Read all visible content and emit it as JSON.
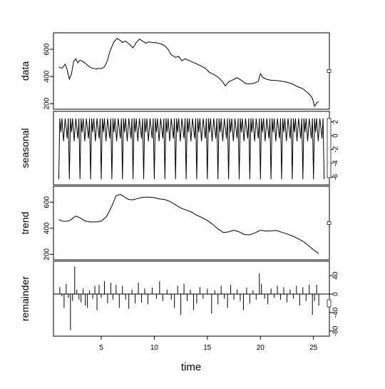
{
  "chart_data": {
    "type": "line",
    "xlabel": "time",
    "xlim": [
      0.5,
      26.5
    ],
    "x_ticks": [
      5,
      10,
      15,
      20,
      25
    ],
    "x_range": [
      1,
      25.5
    ],
    "panels": [
      {
        "id": "data",
        "label": "data",
        "ylim": [
          180,
          700
        ],
        "yticks": [
          200,
          400,
          600
        ],
        "ytick_side": "left",
        "range_bar_right": true,
        "series": {
          "kind": "line",
          "points": [
            [
              1,
              470
            ],
            [
              1.3,
              460
            ],
            [
              1.6,
              490
            ],
            [
              1.8,
              450
            ],
            [
              2,
              380
            ],
            [
              2.2,
              420
            ],
            [
              2.4,
              510
            ],
            [
              2.6,
              530
            ],
            [
              2.8,
              500
            ],
            [
              3,
              520
            ],
            [
              3.3,
              510
            ],
            [
              3.6,
              490
            ],
            [
              3.9,
              470
            ],
            [
              4.2,
              460
            ],
            [
              4.5,
              455
            ],
            [
              4.8,
              460
            ],
            [
              5,
              458
            ],
            [
              5.3,
              470
            ],
            [
              5.6,
              520
            ],
            [
              5.8,
              580
            ],
            [
              6,
              620
            ],
            [
              6.2,
              655
            ],
            [
              6.5,
              680
            ],
            [
              6.8,
              665
            ],
            [
              7,
              650
            ],
            [
              7.3,
              660
            ],
            [
              7.6,
              640
            ],
            [
              8,
              610
            ],
            [
              8.3,
              650
            ],
            [
              8.6,
              675
            ],
            [
              8.9,
              660
            ],
            [
              9.2,
              645
            ],
            [
              9.5,
              655
            ],
            [
              9.8,
              650
            ],
            [
              10.2,
              648
            ],
            [
              10.6,
              640
            ],
            [
              11,
              625
            ],
            [
              11.3,
              600
            ],
            [
              11.6,
              560
            ],
            [
              12,
              540
            ],
            [
              12.3,
              548
            ],
            [
              12.6,
              515
            ],
            [
              12.9,
              530
            ],
            [
              13.2,
              520
            ],
            [
              13.6,
              505
            ],
            [
              14,
              492
            ],
            [
              14.4,
              478
            ],
            [
              14.8,
              460
            ],
            [
              15.2,
              430
            ],
            [
              15.6,
              415
            ],
            [
              16,
              395
            ],
            [
              16.4,
              365
            ],
            [
              16.7,
              330
            ],
            [
              17,
              360
            ],
            [
              17.4,
              375
            ],
            [
              17.8,
              390
            ],
            [
              18.2,
              372
            ],
            [
              18.6,
              348
            ],
            [
              19,
              345
            ],
            [
              19.4,
              350
            ],
            [
              19.8,
              365
            ],
            [
              20,
              420
            ],
            [
              20.2,
              395
            ],
            [
              20.6,
              378
            ],
            [
              21,
              372
            ],
            [
              21.5,
              370
            ],
            [
              22,
              365
            ],
            [
              22.5,
              358
            ],
            [
              23,
              345
            ],
            [
              23.5,
              325
            ],
            [
              24,
              310
            ],
            [
              24.3,
              290
            ],
            [
              24.6,
              270
            ],
            [
              24.9,
              240
            ],
            [
              25.1,
              180
            ],
            [
              25.3,
              205
            ],
            [
              25.5,
              215
            ]
          ]
        }
      },
      {
        "id": "seasonal",
        "label": "seasonal",
        "ylim": [
          -6.7,
          3.1
        ],
        "yticks": [
          -6,
          -4,
          -2,
          0,
          2
        ],
        "ytick_side": "right",
        "range_bar_right": true,
        "series": {
          "kind": "seasonal",
          "period": 1,
          "cycles": 25,
          "pattern": [
            [
              0,
              -6.3
            ],
            [
              0.1,
              2.5
            ],
            [
              0.2,
              0.5
            ],
            [
              0.3,
              2.5
            ],
            [
              0.45,
              -0.8
            ],
            [
              0.6,
              2.5
            ],
            [
              0.8,
              -0.4
            ],
            [
              0.9,
              2.5
            ],
            [
              1.0,
              -6.3
            ]
          ]
        }
      },
      {
        "id": "trend",
        "label": "trend",
        "ylim": [
          180,
          700
        ],
        "yticks": [
          200,
          400,
          600
        ],
        "ytick_side": "left",
        "range_bar_right": true,
        "series": {
          "kind": "line",
          "points": [
            [
              1,
              465
            ],
            [
              1.5,
              452
            ],
            [
              2,
              458
            ],
            [
              2.6,
              493
            ],
            [
              3,
              480
            ],
            [
              3.5,
              455
            ],
            [
              4,
              448
            ],
            [
              4.5,
              448
            ],
            [
              5,
              455
            ],
            [
              5.5,
              490
            ],
            [
              6,
              570
            ],
            [
              6.4,
              650
            ],
            [
              6.8,
              660
            ],
            [
              7.2,
              640
            ],
            [
              7.6,
              620
            ],
            [
              8,
              618
            ],
            [
              8.5,
              630
            ],
            [
              9,
              638
            ],
            [
              9.5,
              638
            ],
            [
              10,
              635
            ],
            [
              10.5,
              625
            ],
            [
              11,
              620
            ],
            [
              11.5,
              605
            ],
            [
              12,
              580
            ],
            [
              12.5,
              555
            ],
            [
              13,
              540
            ],
            [
              13.5,
              525
            ],
            [
              14,
              500
            ],
            [
              14.5,
              482
            ],
            [
              15,
              460
            ],
            [
              15.5,
              430
            ],
            [
              16,
              395
            ],
            [
              16.5,
              368
            ],
            [
              17,
              372
            ],
            [
              17.5,
              385
            ],
            [
              18,
              372
            ],
            [
              18.5,
              352
            ],
            [
              19,
              350
            ],
            [
              19.5,
              365
            ],
            [
              20,
              385
            ],
            [
              20.5,
              378
            ],
            [
              21,
              380
            ],
            [
              21.5,
              383
            ],
            [
              22,
              370
            ],
            [
              22.5,
              356
            ],
            [
              23,
              342
            ],
            [
              23.5,
              323
            ],
            [
              24,
              300
            ],
            [
              24.5,
              270
            ],
            [
              25,
              235
            ],
            [
              25.5,
              205
            ]
          ]
        }
      },
      {
        "id": "remainder",
        "label": "remainder",
        "ylim": [
          -85,
          65
        ],
        "yticks": [
          -80,
          -40,
          0,
          40
        ],
        "ytick_side": "right",
        "range_bar_right": true,
        "zero_line": true,
        "series": {
          "kind": "spikes",
          "points": [
            [
              1.1,
              15
            ],
            [
              1.3,
              -5
            ],
            [
              1.5,
              -30
            ],
            [
              1.7,
              22
            ],
            [
              1.9,
              -8
            ],
            [
              2.1,
              -78
            ],
            [
              2.3,
              -15
            ],
            [
              2.5,
              60
            ],
            [
              2.7,
              10
            ],
            [
              2.9,
              -12
            ],
            [
              3.1,
              -18
            ],
            [
              3.3,
              12
            ],
            [
              3.5,
              -25
            ],
            [
              3.7,
              -30
            ],
            [
              3.9,
              8
            ],
            [
              4.2,
              -10
            ],
            [
              4.4,
              18
            ],
            [
              4.6,
              -35
            ],
            [
              4.8,
              20
            ],
            [
              5,
              -8
            ],
            [
              5.3,
              28
            ],
            [
              5.6,
              -20
            ],
            [
              5.9,
              25
            ],
            [
              6.1,
              -12
            ],
            [
              6.4,
              20
            ],
            [
              6.7,
              -30
            ],
            [
              7,
              18
            ],
            [
              7.3,
              -12
            ],
            [
              7.6,
              -32
            ],
            [
              7.9,
              10
            ],
            [
              8.2,
              -20
            ],
            [
              8.5,
              25
            ],
            [
              8.8,
              -18
            ],
            [
              9.1,
              12
            ],
            [
              9.4,
              -22
            ],
            [
              9.8,
              14
            ],
            [
              10.2,
              -10
            ],
            [
              10.5,
              28
            ],
            [
              10.8,
              -15
            ],
            [
              11.2,
              10
            ],
            [
              11.6,
              -12
            ],
            [
              11.9,
              -30
            ],
            [
              12.2,
              18
            ],
            [
              12.5,
              -45
            ],
            [
              12.8,
              22
            ],
            [
              13.1,
              -15
            ],
            [
              13.4,
              10
            ],
            [
              13.7,
              -35
            ],
            [
              14,
              -20
            ],
            [
              14.3,
              15
            ],
            [
              14.6,
              -10
            ],
            [
              15,
              12
            ],
            [
              15.4,
              -42
            ],
            [
              15.7,
              8
            ],
            [
              16,
              -22
            ],
            [
              16.3,
              18
            ],
            [
              16.6,
              -10
            ],
            [
              16.9,
              -30
            ],
            [
              17.2,
              20
            ],
            [
              17.5,
              -12
            ],
            [
              17.8,
              10
            ],
            [
              18.1,
              -15
            ],
            [
              18.4,
              -35
            ],
            [
              18.7,
              14
            ],
            [
              19,
              -20
            ],
            [
              19.3,
              8
            ],
            [
              19.6,
              -12
            ],
            [
              19.9,
              45
            ],
            [
              20.1,
              22
            ],
            [
              20.4,
              -10
            ],
            [
              20.7,
              -22
            ],
            [
              21,
              12
            ],
            [
              21.3,
              -8
            ],
            [
              21.6,
              18
            ],
            [
              21.9,
              -12
            ],
            [
              22.2,
              15
            ],
            [
              22.5,
              -18
            ],
            [
              22.8,
              10
            ],
            [
              23.1,
              -10
            ],
            [
              23.4,
              18
            ],
            [
              23.7,
              -25
            ],
            [
              24,
              15
            ],
            [
              24.3,
              -15
            ],
            [
              24.6,
              20
            ],
            [
              24.9,
              -45
            ],
            [
              25.1,
              -15
            ],
            [
              25.3,
              20
            ],
            [
              25.5,
              -25
            ]
          ]
        }
      }
    ]
  }
}
